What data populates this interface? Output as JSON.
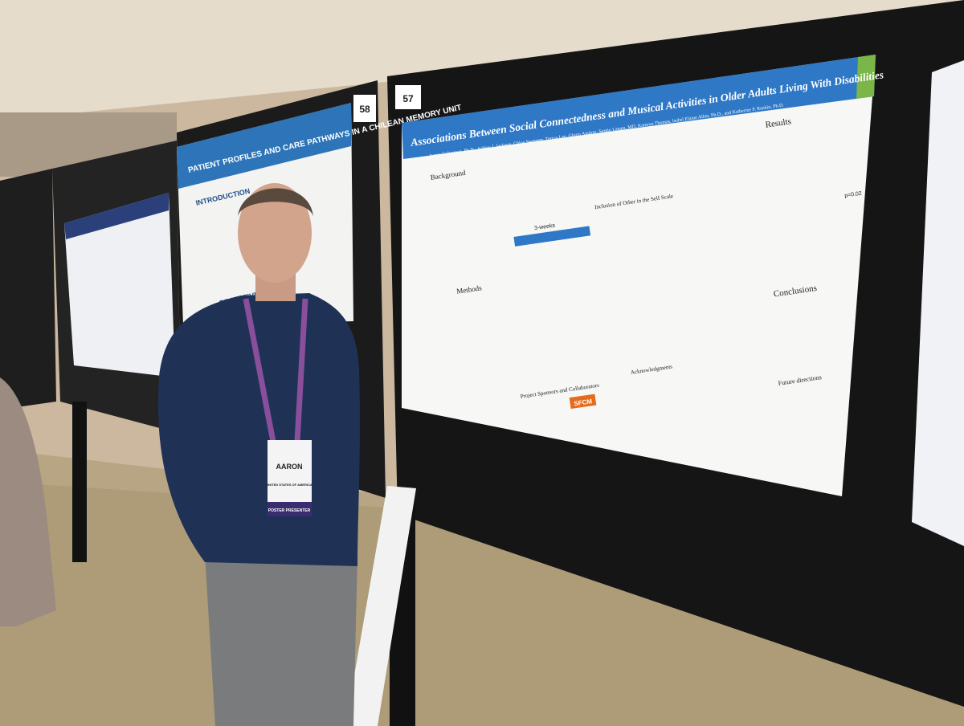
{
  "poster_numbers": [
    "57",
    "58"
  ],
  "main_poster": {
    "title": "Associations Between Social Connectedness and Musical Activities in Older Adults Living With Disabilities",
    "authors": "Aaron Colverson, Ph.D., Ashley J. Jackson, Chloe Swensen, Teresa Lee, Gloria Aguirre, Sergio Lanata, MD, Kamryn Thomas, Isabel Elaine Allen, Ph.D., and Katherine P. Rankin, Ph.D.",
    "sections": {
      "background": "Background",
      "methods": "Methods",
      "sponsors": "Project Sponsors and Collaborators",
      "results": "Results",
      "conclusions": "Conclusions",
      "acknowledgments": "Acknowledgments",
      "future": "Future directions"
    },
    "figure_texts": {
      "weeks": "3-weeks",
      "scale": "Inclusion of Other in the Self Scale",
      "pvalue": "p=0.02",
      "logo": "SFCM"
    }
  },
  "left_poster": {
    "title": "PATIENT PROFILES AND CARE PATHWAYS IN A CHILEAN MEMORY UNIT",
    "introduction": "INTRODUCTION",
    "objective": "OBJECTIVE"
  },
  "badge": {
    "name": "AARON",
    "country": "UNITED STATES OF AMERICA",
    "role": "POSTER PRESENTER"
  }
}
